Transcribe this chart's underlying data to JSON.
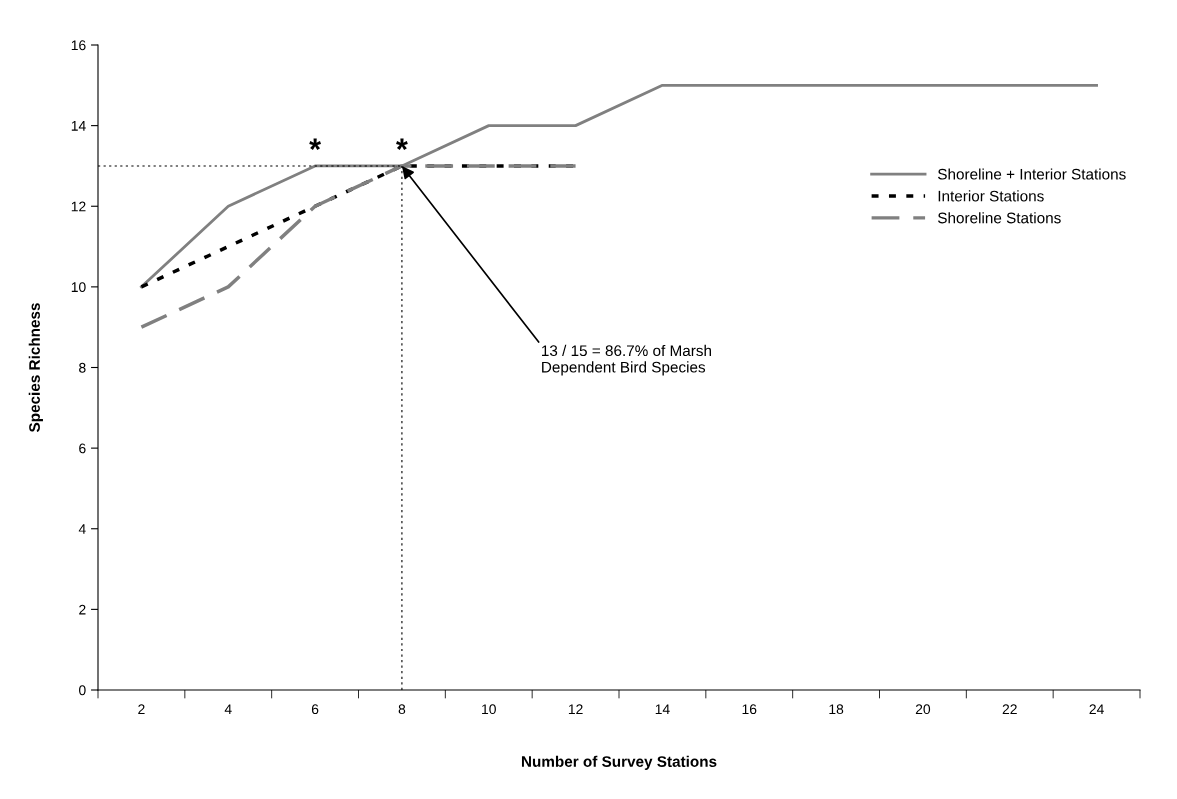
{
  "chart_data": {
    "type": "line",
    "xlabel": "Number of Survey Stations",
    "ylabel": "Species Richness",
    "categories": [
      "2",
      "4",
      "6",
      "8",
      "10",
      "12",
      "14",
      "16",
      "18",
      "20",
      "22",
      "24"
    ],
    "series": [
      {
        "name": "Shoreline + Interior Stations",
        "color": "#808080",
        "line_style": "solid",
        "values": [
          10,
          12,
          13,
          13,
          14,
          14,
          15,
          15,
          15,
          15,
          15,
          15
        ]
      },
      {
        "name": "Interior Stations",
        "color": "#000000",
        "line_style": "dotted",
        "values": [
          10,
          11,
          12,
          13,
          13,
          13,
          null,
          null,
          null,
          null,
          null,
          null
        ]
      },
      {
        "name": "Shoreline Stations",
        "color": "#808080",
        "line_style": "dashed",
        "values": [
          9,
          10,
          12,
          13,
          13,
          13,
          null,
          null,
          null,
          null,
          null,
          null
        ]
      }
    ],
    "ylim": [
      0,
      16
    ],
    "yticks": [
      0,
      2,
      4,
      6,
      8,
      10,
      12,
      14,
      16
    ],
    "ref_lines": [
      {
        "axis": "y",
        "value": 13,
        "color": "#000000",
        "line_style": "dotted"
      },
      {
        "axis": "x",
        "value": "8",
        "color": "#000000",
        "line_style": "dotted"
      }
    ],
    "annotations": [
      {
        "text": "*",
        "x": "6",
        "y": 13
      },
      {
        "text": "*",
        "x": "8",
        "y": 13
      },
      {
        "text": "13 / 15 = 86.7% of Marsh\nDependent Bird Species",
        "x": "8",
        "y": 13
      }
    ],
    "legend": "top right",
    "grid": false,
    "marker": "none"
  }
}
